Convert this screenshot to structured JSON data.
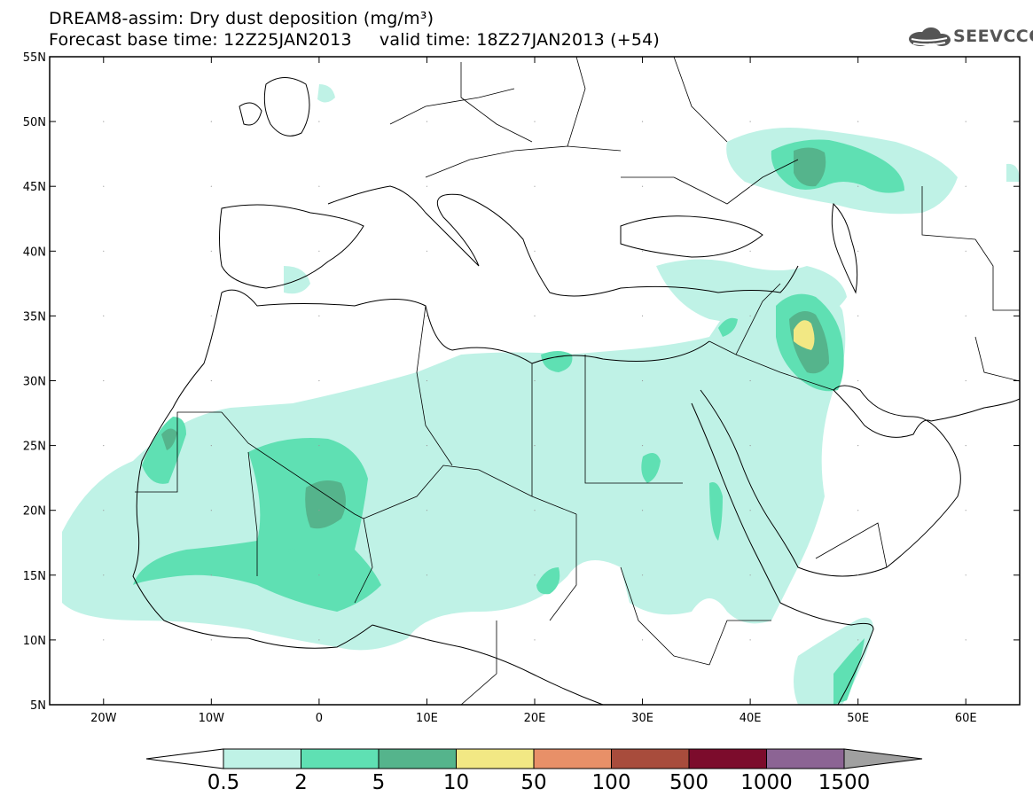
{
  "header": {
    "title_line1": "DREAM8-assim: Dry dust deposition (mg/m³)",
    "title_line2": "Forecast base time: 12Z25JAN2013     valid time: 18Z27JAN2013 (+54)",
    "logo_text": "SEEVCCC",
    "logo_icon": "cloud-icon"
  },
  "map": {
    "projection": "lat-lon",
    "lon_range": [
      -25,
      65
    ],
    "lat_range": [
      5,
      55
    ],
    "lat_labels": [
      "55N",
      "50N",
      "45N",
      "40N",
      "35N",
      "30N",
      "25N",
      "20N",
      "15N",
      "10N",
      "5N"
    ],
    "lon_labels": [
      "20W",
      "10W",
      "0",
      "10E",
      "20E",
      "30E",
      "40E",
      "50E",
      "60E"
    ],
    "coastline_color": "#000000"
  },
  "legend": {
    "thresholds": [
      "0.5",
      "2",
      "5",
      "10",
      "50",
      "100",
      "500",
      "1000",
      "1500"
    ],
    "colors": [
      "#bff2e6",
      "#5fe0b3",
      "#55b48c",
      "#f2e884",
      "#e89068",
      "#a84c3c",
      "#7c0c2c",
      "#8c6494",
      "#a0a0a0"
    ]
  }
}
